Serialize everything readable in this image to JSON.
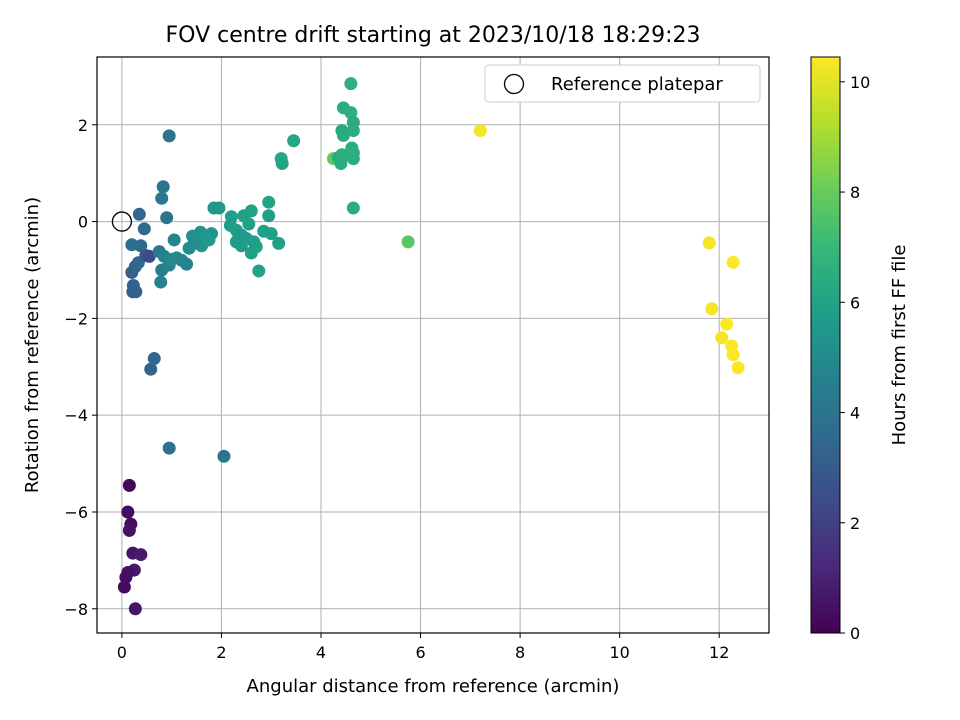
{
  "chart_data": {
    "type": "scatter",
    "title": "FOV centre drift starting at 2023/10/18 18:29:23",
    "xlabel": "Angular distance from reference (arcmin)",
    "ylabel": "Rotation from reference (arcmin)",
    "xlim": [
      -0.5,
      13
    ],
    "ylim": [
      -8.5,
      3.4
    ],
    "xticks": [
      0,
      2,
      4,
      6,
      8,
      10,
      12
    ],
    "yticks": [
      -8,
      -6,
      -4,
      -2,
      0,
      2
    ],
    "grid": true,
    "legend": {
      "placement": "top-right",
      "entries": [
        "Reference platepar"
      ]
    },
    "reference_point": {
      "x": 0,
      "y": 0
    },
    "colorbar": {
      "label": "Hours from first FF file",
      "range": [
        0,
        10.45
      ],
      "ticks": [
        0,
        2,
        4,
        6,
        8,
        10
      ],
      "colormap": [
        "#440154",
        "#482878",
        "#3e4989",
        "#31688e",
        "#26828e",
        "#1f9e89",
        "#35b779",
        "#6ece58",
        "#b5de2b",
        "#fde725"
      ]
    },
    "points": [
      [
        0.15,
        -5.45,
        0.2
      ],
      [
        0.12,
        -6.0,
        0.3
      ],
      [
        0.18,
        -6.25,
        0.4
      ],
      [
        0.15,
        -6.38,
        0.5
      ],
      [
        0.22,
        -6.85,
        0.6
      ],
      [
        0.38,
        -6.88,
        0.8
      ],
      [
        0.25,
        -7.2,
        0.7
      ],
      [
        0.12,
        -7.25,
        0.5
      ],
      [
        0.08,
        -7.35,
        0.4
      ],
      [
        0.05,
        -7.55,
        0.3
      ],
      [
        0.27,
        -8.0,
        0.6
      ],
      [
        0.58,
        -3.05,
        3.3
      ],
      [
        0.65,
        -2.83,
        3.5
      ],
      [
        0.95,
        -4.68,
        3.9
      ],
      [
        2.05,
        -4.85,
        4.0
      ],
      [
        0.22,
        -1.45,
        3.1
      ],
      [
        0.28,
        -1.45,
        3.2
      ],
      [
        0.23,
        -1.32,
        3.3
      ],
      [
        0.2,
        -1.05,
        3.2
      ],
      [
        0.27,
        -0.93,
        3.3
      ],
      [
        0.33,
        -0.85,
        3.4
      ],
      [
        0.48,
        -0.7,
        2.9
      ],
      [
        0.55,
        -0.72,
        2.4
      ],
      [
        0.38,
        -0.5,
        3.5
      ],
      [
        0.2,
        -0.48,
        3.8
      ],
      [
        0.45,
        -0.15,
        3.6
      ],
      [
        0.35,
        0.15,
        3.4
      ],
      [
        0.78,
        -1.25,
        4.6
      ],
      [
        0.8,
        -1.0,
        4.5
      ],
      [
        0.75,
        -0.62,
        4.3
      ],
      [
        0.85,
        -0.72,
        4.6
      ],
      [
        0.9,
        0.08,
        4.0
      ],
      [
        0.8,
        0.48,
        4.2
      ],
      [
        0.83,
        0.72,
        4.1
      ],
      [
        0.95,
        1.77,
        4.0
      ],
      [
        1.05,
        -0.38,
        4.8
      ],
      [
        0.95,
        -0.9,
        4.7
      ],
      [
        1.0,
        -0.78,
        4.9
      ],
      [
        1.1,
        -0.75,
        5.0
      ],
      [
        1.2,
        -0.8,
        4.8
      ],
      [
        1.3,
        -0.88,
        4.7
      ],
      [
        1.35,
        -0.55,
        5.1
      ],
      [
        1.42,
        -0.3,
        5.2
      ],
      [
        1.5,
        -0.35,
        5.3
      ],
      [
        1.6,
        -0.5,
        5.4
      ],
      [
        1.58,
        -0.22,
        5.3
      ],
      [
        1.68,
        -0.32,
        5.5
      ],
      [
        1.8,
        -0.25,
        5.4
      ],
      [
        1.75,
        -0.38,
        5.6
      ],
      [
        1.45,
        -0.45,
        5.2
      ],
      [
        1.85,
        0.28,
        5.6
      ],
      [
        1.95,
        0.28,
        5.5
      ],
      [
        2.2,
        0.1,
        5.8
      ],
      [
        2.18,
        -0.08,
        5.7
      ],
      [
        2.3,
        -0.18,
        5.9
      ],
      [
        2.35,
        -0.3,
        5.8
      ],
      [
        2.4,
        -0.5,
        5.7
      ],
      [
        2.45,
        0.12,
        5.9
      ],
      [
        2.55,
        -0.05,
        5.9
      ],
      [
        2.6,
        0.22,
        6.0
      ],
      [
        2.5,
        -0.35,
        5.8
      ],
      [
        2.6,
        -0.65,
        5.9
      ],
      [
        2.7,
        -0.52,
        6.0
      ],
      [
        2.75,
        -1.02,
        6.0
      ],
      [
        2.65,
        -0.42,
        5.8
      ],
      [
        2.85,
        -0.2,
        5.9
      ],
      [
        2.95,
        0.12,
        5.9
      ],
      [
        2.95,
        0.4,
        6.0
      ],
      [
        3.0,
        -0.25,
        5.9
      ],
      [
        3.15,
        -0.45,
        5.9
      ],
      [
        2.4,
        -0.28,
        5.7
      ],
      [
        2.3,
        -0.42,
        5.7
      ],
      [
        3.2,
        1.3,
        6.2
      ],
      [
        3.22,
        1.2,
        6.1
      ],
      [
        3.45,
        1.67,
        6.2
      ],
      [
        4.25,
        1.3,
        7.8
      ],
      [
        4.35,
        1.32,
        6.3
      ],
      [
        4.4,
        1.2,
        6.4
      ],
      [
        4.42,
        1.38,
        6.5
      ],
      [
        4.45,
        1.78,
        6.4
      ],
      [
        4.42,
        1.88,
        6.3
      ],
      [
        4.45,
        2.35,
        6.5
      ],
      [
        4.6,
        2.25,
        6.6
      ],
      [
        4.6,
        2.85,
        6.6
      ],
      [
        4.65,
        2.05,
        6.4
      ],
      [
        4.65,
        1.88,
        6.5
      ],
      [
        4.62,
        1.52,
        6.4
      ],
      [
        4.65,
        1.42,
        6.5
      ],
      [
        4.65,
        1.3,
        6.4
      ],
      [
        4.55,
        1.38,
        6.6
      ],
      [
        4.65,
        0.28,
        6.5
      ],
      [
        5.75,
        -0.42,
        7.7
      ],
      [
        7.2,
        1.88,
        10.3
      ],
      [
        11.8,
        -0.44,
        10.3
      ],
      [
        12.28,
        -0.84,
        10.4
      ],
      [
        11.85,
        -1.8,
        10.3
      ],
      [
        12.15,
        -2.12,
        10.4
      ],
      [
        12.05,
        -2.4,
        10.3
      ],
      [
        12.25,
        -2.57,
        10.4
      ],
      [
        12.28,
        -2.75,
        10.4
      ],
      [
        12.38,
        -3.02,
        10.4
      ]
    ]
  }
}
